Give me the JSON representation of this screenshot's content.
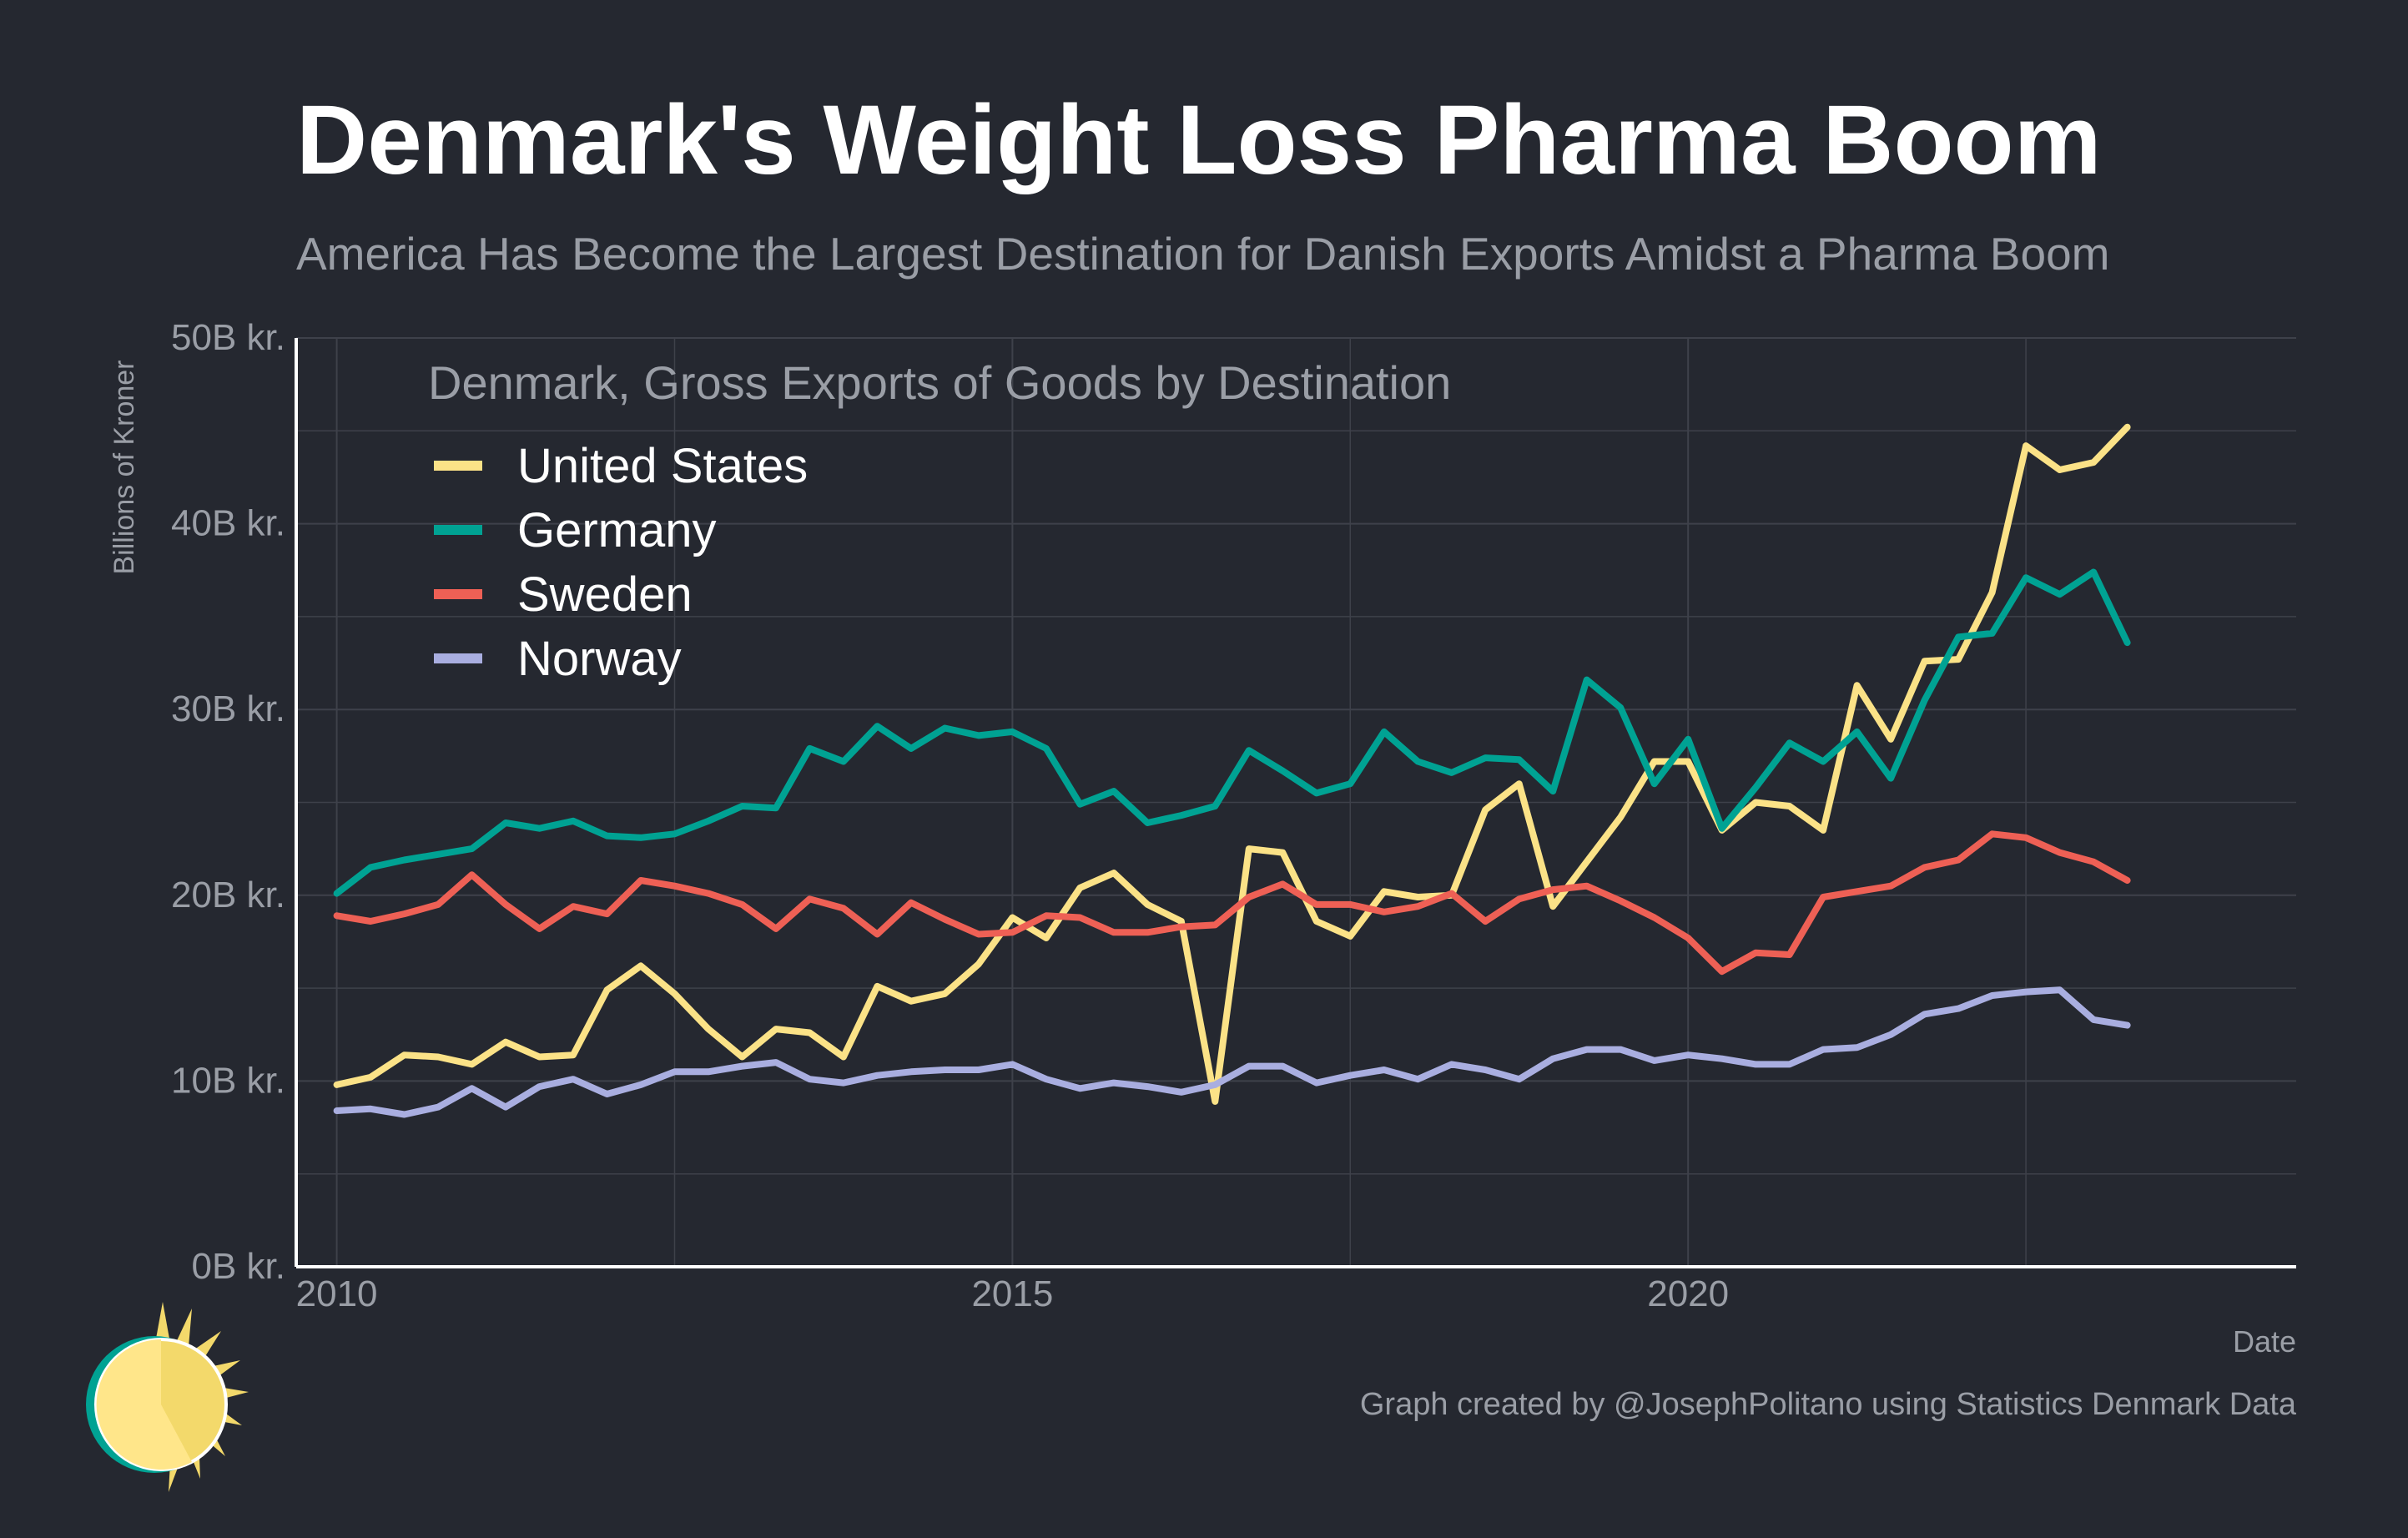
{
  "title": "Denmark's Weight Loss Pharma Boom",
  "subtitle": "America Has Become the Largest Destination for Danish Exports Amidst a Pharma Boom",
  "caption": "Graph created by @JosephPolitano using Statistics Denmark Data",
  "colors": {
    "background": "#252830",
    "grid": "#3e414a",
    "axis": "#ffffff",
    "muted_text": "#9a9ea6"
  },
  "chart_data": {
    "type": "line",
    "inner_title": "Denmark, Gross Exports of Goods by Destination",
    "xlabel": "Date",
    "ylabel": "Billions of Kroner",
    "xlim": [
      2009.7,
      2024.5
    ],
    "ylim": [
      0,
      50
    ],
    "x_ticks": [
      2010,
      2015,
      2020
    ],
    "x_tick_labels": [
      "2010",
      "2015",
      "2020"
    ],
    "y_ticks": [
      0,
      10,
      20,
      30,
      40,
      50
    ],
    "y_tick_labels": [
      "0B kr.",
      "10B kr.",
      "20B kr.",
      "30B kr.",
      "40B kr.",
      "50B kr."
    ],
    "grid": true,
    "legend_position": "top-left",
    "x": [
      2010.0,
      2010.25,
      2010.5,
      2010.75,
      2011.0,
      2011.25,
      2011.5,
      2011.75,
      2012.0,
      2012.25,
      2012.5,
      2012.75,
      2013.0,
      2013.25,
      2013.5,
      2013.75,
      2014.0,
      2014.25,
      2014.5,
      2014.75,
      2015.0,
      2015.25,
      2015.5,
      2015.75,
      2016.0,
      2016.25,
      2016.5,
      2016.75,
      2017.0,
      2017.25,
      2017.5,
      2017.75,
      2018.0,
      2018.25,
      2018.5,
      2018.75,
      2019.0,
      2019.25,
      2019.5,
      2019.75,
      2020.0,
      2020.25,
      2020.5,
      2020.75,
      2021.0,
      2021.25,
      2021.5,
      2021.75,
      2022.0,
      2022.25,
      2022.5,
      2022.75,
      2023.0,
      2023.25
    ],
    "series": [
      {
        "name": "United States",
        "color": "#fbe287",
        "values": [
          9.8,
          10.2,
          11.4,
          11.3,
          10.9,
          12.1,
          11.3,
          11.4,
          14.9,
          16.2,
          14.7,
          12.8,
          11.3,
          12.8,
          12.6,
          11.3,
          15.1,
          14.3,
          14.7,
          16.3,
          18.8,
          17.7,
          20.4,
          21.2,
          19.5,
          18.6,
          8.9,
          22.5,
          22.3,
          18.6,
          17.8,
          20.2,
          19.9,
          20.0,
          24.6,
          26.0,
          19.4,
          21.8,
          24.2,
          27.2,
          27.2,
          23.5,
          25.0,
          24.8,
          23.5,
          31.3,
          28.4,
          32.6,
          32.7,
          36.3,
          44.2,
          42.9,
          43.3,
          45.2
        ]
      },
      {
        "name": "Germany",
        "color": "#00a293",
        "values": [
          20.1,
          21.5,
          21.9,
          22.2,
          22.5,
          23.9,
          23.6,
          24.0,
          23.2,
          23.1,
          23.3,
          24.0,
          24.8,
          24.7,
          27.9,
          27.2,
          29.1,
          27.9,
          29.0,
          28.6,
          28.8,
          27.9,
          24.9,
          25.6,
          23.9,
          24.3,
          24.8,
          27.8,
          26.7,
          25.5,
          26.0,
          28.8,
          27.2,
          26.6,
          27.4,
          27.3,
          25.6,
          31.6,
          30.1,
          26.0,
          28.4,
          23.6,
          25.8,
          28.2,
          27.2,
          28.8,
          26.3,
          30.5,
          33.9,
          34.1,
          37.1,
          36.2,
          37.4,
          33.6
        ]
      },
      {
        "name": "Sweden",
        "color": "#ee6055",
        "values": [
          18.9,
          18.6,
          19.0,
          19.5,
          21.1,
          19.5,
          18.2,
          19.4,
          19.0,
          20.8,
          20.5,
          20.1,
          19.5,
          18.2,
          19.8,
          19.3,
          17.9,
          19.6,
          18.7,
          17.9,
          18.0,
          18.9,
          18.8,
          18.0,
          18.0,
          18.3,
          18.4,
          19.9,
          20.6,
          19.5,
          19.5,
          19.1,
          19.4,
          20.1,
          18.6,
          19.8,
          20.3,
          20.5,
          19.7,
          18.8,
          17.7,
          15.9,
          16.9,
          16.8,
          19.9,
          20.2,
          20.5,
          21.5,
          21.9,
          23.3,
          23.1,
          22.3,
          21.8,
          20.8
        ]
      },
      {
        "name": "Norway",
        "color": "#a9aee0",
        "values": [
          8.4,
          8.5,
          8.2,
          8.6,
          9.6,
          8.6,
          9.7,
          10.1,
          9.3,
          9.8,
          10.5,
          10.5,
          10.8,
          11.0,
          10.1,
          9.9,
          10.3,
          10.5,
          10.6,
          10.6,
          10.9,
          10.1,
          9.6,
          9.9,
          9.7,
          9.4,
          9.8,
          10.8,
          10.8,
          9.9,
          10.3,
          10.6,
          10.1,
          10.9,
          10.6,
          10.1,
          11.2,
          11.7,
          11.7,
          11.1,
          11.4,
          11.2,
          10.9,
          10.9,
          11.7,
          11.8,
          12.5,
          13.6,
          13.9,
          14.6,
          14.8,
          14.9,
          13.3,
          13.0
        ]
      }
    ]
  }
}
